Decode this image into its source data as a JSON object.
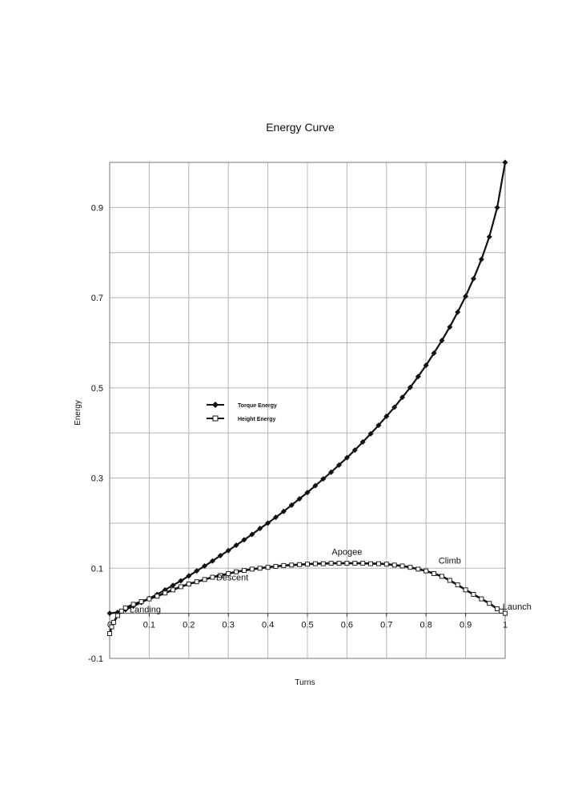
{
  "chart_data": {
    "type": "line",
    "title": "Energy Curve",
    "xlabel": "Turns",
    "ylabel": "Energy",
    "xlim": [
      0,
      1
    ],
    "ylim": [
      -0.1,
      1.0
    ],
    "x_ticks": [
      {
        "v": 0,
        "label": "0"
      },
      {
        "v": 0.1,
        "label": "0.1"
      },
      {
        "v": 0.2,
        "label": "0.2"
      },
      {
        "v": 0.3,
        "label": "0.3"
      },
      {
        "v": 0.4,
        "label": "0.4"
      },
      {
        "v": 0.5,
        "label": "0.5"
      },
      {
        "v": 0.6,
        "label": "0.6"
      },
      {
        "v": 0.7,
        "label": "0.7"
      },
      {
        "v": 0.8,
        "label": "0.8"
      },
      {
        "v": 0.9,
        "label": "0.9"
      },
      {
        "v": 1,
        "label": "1"
      }
    ],
    "y_ticks": [
      {
        "v": -0.1,
        "label": "-0.1"
      },
      {
        "v": 0.1,
        "label": "0.1"
      },
      {
        "v": 0.3,
        "label": "0.3"
      },
      {
        "v": 0.5,
        "label": "0.5"
      },
      {
        "v": 0.7,
        "label": "0.7"
      },
      {
        "v": 0.9,
        "label": "0.9"
      }
    ],
    "grid": true,
    "legend_position": "center-left",
    "series": [
      {
        "name": "Torque Energy",
        "marker": "diamond",
        "color": "#111111",
        "x": [
          0,
          0.02,
          0.04,
          0.06,
          0.08,
          0.1,
          0.12,
          0.14,
          0.16,
          0.18,
          0.2,
          0.22,
          0.24,
          0.26,
          0.28,
          0.3,
          0.32,
          0.34,
          0.36,
          0.38,
          0.4,
          0.42,
          0.44,
          0.46,
          0.48,
          0.5,
          0.52,
          0.54,
          0.56,
          0.58,
          0.6,
          0.62,
          0.64,
          0.66,
          0.68,
          0.7,
          0.72,
          0.74,
          0.76,
          0.78,
          0.8,
          0.82,
          0.84,
          0.86,
          0.88,
          0.9,
          0.92,
          0.94,
          0.96,
          0.98,
          1.0
        ],
        "y": [
          0.0,
          0.002,
          0.008,
          0.016,
          0.024,
          0.033,
          0.042,
          0.052,
          0.062,
          0.072,
          0.083,
          0.094,
          0.105,
          0.116,
          0.128,
          0.139,
          0.151,
          0.163,
          0.175,
          0.188,
          0.2,
          0.213,
          0.226,
          0.24,
          0.254,
          0.268,
          0.283,
          0.298,
          0.313,
          0.329,
          0.345,
          0.362,
          0.38,
          0.398,
          0.417,
          0.437,
          0.457,
          0.479,
          0.501,
          0.525,
          0.55,
          0.577,
          0.605,
          0.635,
          0.668,
          0.703,
          0.742,
          0.785,
          0.835,
          0.9,
          1.0
        ]
      },
      {
        "name": "Height Energy",
        "marker": "square",
        "color": "#111111",
        "x": [
          0,
          0.005,
          0.01,
          0.02,
          0.03,
          0.04,
          0.06,
          0.08,
          0.1,
          0.12,
          0.14,
          0.16,
          0.18,
          0.2,
          0.22,
          0.24,
          0.26,
          0.28,
          0.3,
          0.32,
          0.34,
          0.36,
          0.38,
          0.4,
          0.42,
          0.44,
          0.46,
          0.48,
          0.5,
          0.52,
          0.54,
          0.56,
          0.58,
          0.6,
          0.62,
          0.64,
          0.66,
          0.68,
          0.7,
          0.72,
          0.74,
          0.76,
          0.78,
          0.8,
          0.82,
          0.84,
          0.86,
          0.88,
          0.9,
          0.92,
          0.94,
          0.96,
          0.98,
          0.99,
          1.0
        ],
        "y": [
          -0.045,
          -0.03,
          -0.02,
          -0.005,
          0.005,
          0.012,
          0.02,
          0.026,
          0.032,
          0.038,
          0.045,
          0.052,
          0.059,
          0.065,
          0.07,
          0.075,
          0.08,
          0.084,
          0.088,
          0.092,
          0.095,
          0.098,
          0.1,
          0.102,
          0.104,
          0.106,
          0.107,
          0.108,
          0.109,
          0.11,
          0.11,
          0.111,
          0.111,
          0.111,
          0.111,
          0.111,
          0.11,
          0.11,
          0.109,
          0.107,
          0.105,
          0.102,
          0.098,
          0.094,
          0.088,
          0.082,
          0.073,
          0.063,
          0.052,
          0.042,
          0.032,
          0.022,
          0.01,
          0.005,
          0.0
        ]
      }
    ],
    "annotations": [
      {
        "text": "Apogee",
        "x": 0.6,
        "y": 0.13
      },
      {
        "text": "Climb",
        "x": 0.86,
        "y": 0.11
      },
      {
        "text": "Descent",
        "x": 0.31,
        "y": 0.073
      },
      {
        "text": "Landing",
        "x": 0.09,
        "y": 0.002
      },
      {
        "text": "Launch",
        "x": 1.03,
        "y": 0.008
      }
    ]
  }
}
